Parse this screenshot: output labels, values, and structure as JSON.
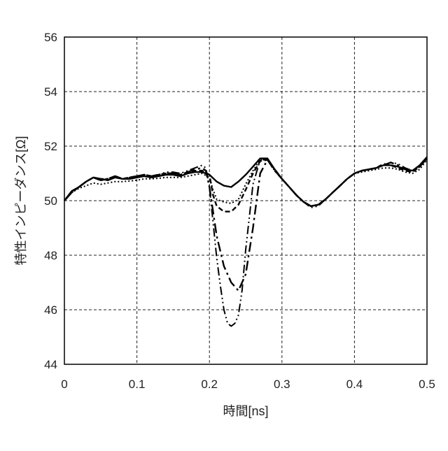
{
  "chart_data": {
    "type": "line",
    "title": "",
    "xlabel": "時間[ns]",
    "ylabel": "特性インピーダンス[Ω]",
    "xlim": [
      0,
      0.5
    ],
    "ylim": [
      44,
      56
    ],
    "x_ticks": [
      0,
      0.1,
      0.2,
      0.3,
      0.4,
      0.5
    ],
    "x_tick_labels": [
      "0",
      "0.1",
      "0.2",
      "0.3",
      "0.4",
      "0.5"
    ],
    "y_ticks": [
      44,
      46,
      48,
      50,
      52,
      54,
      56
    ],
    "y_tick_labels": [
      "44",
      "46",
      "48",
      "50",
      "52",
      "54",
      "56"
    ],
    "grid": true,
    "legend": "none",
    "series": [
      {
        "style": "solid",
        "x": [
          0,
          0.01,
          0.02,
          0.03,
          0.04,
          0.05,
          0.06,
          0.07,
          0.08,
          0.09,
          0.1,
          0.11,
          0.12,
          0.13,
          0.14,
          0.15,
          0.16,
          0.17,
          0.18,
          0.19,
          0.2,
          0.21,
          0.22,
          0.23,
          0.24,
          0.25,
          0.26,
          0.27,
          0.28,
          0.29,
          0.3,
          0.31,
          0.32,
          0.33,
          0.34,
          0.35,
          0.36,
          0.37,
          0.38,
          0.39,
          0.4,
          0.41,
          0.42,
          0.43,
          0.44,
          0.45,
          0.46,
          0.47,
          0.48,
          0.49,
          0.5
        ],
        "values": [
          50.0,
          50.35,
          50.5,
          50.7,
          50.85,
          50.8,
          50.75,
          50.85,
          50.8,
          50.8,
          50.85,
          50.9,
          50.85,
          50.9,
          50.95,
          50.95,
          50.9,
          51.0,
          51.05,
          51.05,
          50.95,
          50.7,
          50.55,
          50.5,
          50.7,
          50.95,
          51.25,
          51.55,
          51.55,
          51.15,
          50.8,
          50.5,
          50.2,
          49.95,
          49.8,
          49.85,
          50.05,
          50.3,
          50.55,
          50.8,
          51.0,
          51.1,
          51.15,
          51.2,
          51.3,
          51.3,
          51.25,
          51.15,
          51.1,
          51.3,
          51.6
        ]
      },
      {
        "style": "dotted",
        "x": [
          0,
          0.01,
          0.02,
          0.03,
          0.04,
          0.05,
          0.06,
          0.07,
          0.08,
          0.09,
          0.1,
          0.11,
          0.12,
          0.13,
          0.14,
          0.15,
          0.16,
          0.17,
          0.18,
          0.19,
          0.2,
          0.205,
          0.21,
          0.22,
          0.23,
          0.24,
          0.25,
          0.26,
          0.27,
          0.28,
          0.29,
          0.3,
          0.31,
          0.32,
          0.33,
          0.34,
          0.35,
          0.36,
          0.37,
          0.38,
          0.39,
          0.4,
          0.41,
          0.42,
          0.43,
          0.44,
          0.45,
          0.46,
          0.47,
          0.48,
          0.49,
          0.5
        ],
        "values": [
          50.0,
          50.3,
          50.45,
          50.55,
          50.65,
          50.6,
          50.65,
          50.7,
          50.7,
          50.72,
          50.75,
          50.8,
          50.8,
          50.82,
          50.85,
          50.85,
          50.85,
          50.9,
          50.95,
          51.0,
          50.85,
          50.4,
          50.05,
          49.95,
          49.9,
          50.05,
          50.6,
          51.1,
          51.5,
          51.5,
          51.1,
          50.8,
          50.5,
          50.2,
          49.95,
          49.8,
          49.85,
          50.05,
          50.3,
          50.55,
          50.8,
          51.0,
          51.05,
          51.1,
          51.15,
          51.2,
          51.2,
          51.15,
          51.05,
          51.0,
          51.15,
          51.5
        ]
      },
      {
        "style": "dashed",
        "x": [
          0,
          0.01,
          0.02,
          0.03,
          0.04,
          0.05,
          0.06,
          0.07,
          0.08,
          0.09,
          0.1,
          0.11,
          0.12,
          0.13,
          0.14,
          0.15,
          0.16,
          0.17,
          0.18,
          0.19,
          0.2,
          0.205,
          0.21,
          0.22,
          0.23,
          0.24,
          0.25,
          0.26,
          0.27,
          0.28,
          0.29,
          0.3,
          0.31,
          0.32,
          0.33,
          0.34,
          0.35,
          0.36,
          0.37,
          0.38,
          0.39,
          0.4,
          0.41,
          0.42,
          0.43,
          0.44,
          0.45,
          0.46,
          0.47,
          0.48,
          0.49,
          0.5
        ],
        "values": [
          50.0,
          50.3,
          50.5,
          50.7,
          50.85,
          50.75,
          50.8,
          50.9,
          50.8,
          50.85,
          50.9,
          50.95,
          50.9,
          50.95,
          51.0,
          51.0,
          50.95,
          51.05,
          51.1,
          51.1,
          50.95,
          50.2,
          49.8,
          49.6,
          49.6,
          49.85,
          50.4,
          51.0,
          51.45,
          51.5,
          51.15,
          50.8,
          50.5,
          50.2,
          49.95,
          49.8,
          49.85,
          50.05,
          50.3,
          50.55,
          50.8,
          51.0,
          51.1,
          51.15,
          51.2,
          51.35,
          51.3,
          51.2,
          51.1,
          51.05,
          51.25,
          51.55
        ]
      },
      {
        "style": "dash-dot",
        "x": [
          0,
          0.01,
          0.02,
          0.03,
          0.04,
          0.05,
          0.06,
          0.07,
          0.08,
          0.09,
          0.1,
          0.11,
          0.12,
          0.13,
          0.14,
          0.15,
          0.16,
          0.17,
          0.18,
          0.19,
          0.195,
          0.2,
          0.205,
          0.21,
          0.22,
          0.23,
          0.24,
          0.25,
          0.26,
          0.27,
          0.28,
          0.29,
          0.3,
          0.31,
          0.32,
          0.33,
          0.34,
          0.35,
          0.36,
          0.37,
          0.38,
          0.39,
          0.4,
          0.41,
          0.42,
          0.43,
          0.44,
          0.45,
          0.46,
          0.47,
          0.48,
          0.49,
          0.5
        ],
        "values": [
          50.0,
          50.3,
          50.5,
          50.7,
          50.85,
          50.75,
          50.8,
          50.9,
          50.8,
          50.85,
          50.9,
          50.95,
          50.9,
          50.95,
          51.0,
          51.0,
          50.95,
          51.05,
          51.15,
          51.2,
          51.1,
          50.5,
          49.6,
          48.7,
          47.6,
          47.0,
          46.7,
          47.3,
          49.0,
          51.0,
          51.5,
          51.1,
          50.8,
          50.5,
          50.2,
          49.95,
          49.8,
          49.85,
          50.05,
          50.3,
          50.55,
          50.8,
          51.0,
          51.1,
          51.15,
          51.2,
          51.3,
          51.4,
          51.3,
          51.15,
          51.05,
          51.25,
          51.55
        ]
      },
      {
        "style": "dash-dot-dot",
        "x": [
          0,
          0.01,
          0.02,
          0.03,
          0.04,
          0.05,
          0.06,
          0.07,
          0.08,
          0.09,
          0.1,
          0.11,
          0.12,
          0.13,
          0.14,
          0.15,
          0.16,
          0.17,
          0.18,
          0.19,
          0.195,
          0.2,
          0.205,
          0.21,
          0.215,
          0.22,
          0.225,
          0.23,
          0.235,
          0.24,
          0.245,
          0.25,
          0.26,
          0.27,
          0.28,
          0.29,
          0.3,
          0.31,
          0.32,
          0.33,
          0.34,
          0.35,
          0.36,
          0.37,
          0.38,
          0.39,
          0.4,
          0.41,
          0.42,
          0.43,
          0.44,
          0.45,
          0.46,
          0.47,
          0.48,
          0.49,
          0.5
        ],
        "values": [
          50.0,
          50.3,
          50.5,
          50.7,
          50.85,
          50.8,
          50.8,
          50.9,
          50.8,
          50.85,
          50.9,
          50.95,
          50.9,
          50.95,
          51.05,
          51.05,
          51.0,
          51.1,
          51.2,
          51.3,
          51.2,
          50.5,
          49.2,
          47.9,
          46.9,
          46.0,
          45.5,
          45.4,
          45.5,
          45.8,
          46.7,
          48.2,
          50.6,
          51.5,
          51.5,
          51.1,
          50.8,
          50.5,
          50.2,
          49.95,
          49.75,
          49.8,
          50.05,
          50.3,
          50.55,
          50.8,
          51.0,
          51.1,
          51.15,
          51.2,
          51.3,
          51.4,
          51.35,
          51.2,
          51.1,
          51.3,
          51.6
        ]
      }
    ]
  }
}
